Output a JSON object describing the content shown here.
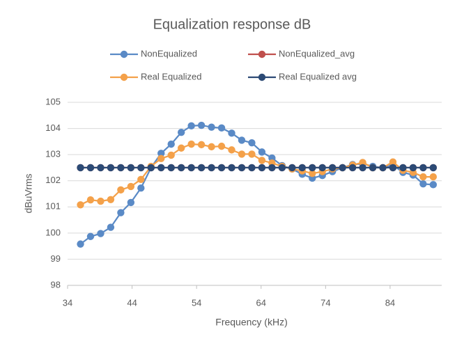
{
  "chart_data": {
    "type": "line",
    "title": "Equalization response  dB",
    "x_label": "Frequency (kHz)",
    "y_label": "dBuVrms",
    "x": [
      36,
      37.5625,
      39.125,
      40.6875,
      42.25,
      43.8125,
      45.375,
      46.9375,
      48.5,
      50.0625,
      51.625,
      53.1875,
      54.75,
      56.3125,
      57.875,
      59.4375,
      61,
      62.5625,
      64.125,
      65.6875,
      67.25,
      68.8125,
      70.375,
      71.9375,
      73.5,
      75.0625,
      76.625,
      78.1875,
      79.75,
      81.3125,
      82.875,
      84.4375,
      86,
      87.5625,
      89.125,
      90.6875
    ],
    "series": [
      {
        "name": "NonEqualized",
        "color": "#5a8ac6",
        "values": [
          99.58,
          99.87,
          99.98,
          100.22,
          100.78,
          101.17,
          101.72,
          102.5,
          103.05,
          103.4,
          103.85,
          104.1,
          104.12,
          104.05,
          104.02,
          103.82,
          103.55,
          103.45,
          103.1,
          102.87,
          102.58,
          102.45,
          102.25,
          102.1,
          102.2,
          102.35,
          102.5,
          102.62,
          102.65,
          102.55,
          102.5,
          102.6,
          102.32,
          102.22,
          101.88,
          101.85
        ]
      },
      {
        "name": "NonEqualized_avg",
        "color": "#c0504d",
        "values": [
          102.5,
          102.5,
          102.5,
          102.5,
          102.5,
          102.5,
          102.5,
          102.5,
          102.5,
          102.5,
          102.5,
          102.5,
          102.5,
          102.5,
          102.5,
          102.5,
          102.5,
          102.5,
          102.5,
          102.5,
          102.5,
          102.5,
          102.5,
          102.5,
          102.5,
          102.5,
          102.5,
          102.5,
          102.5,
          102.5,
          102.5,
          102.5,
          102.5,
          102.5,
          102.5,
          102.5
        ]
      },
      {
        "name": "Real Equalized",
        "color": "#f4a14a",
        "values": [
          101.08,
          101.27,
          101.22,
          101.28,
          101.65,
          101.78,
          102.05,
          102.55,
          102.85,
          102.98,
          103.25,
          103.4,
          103.38,
          103.3,
          103.32,
          103.18,
          103.02,
          103.02,
          102.78,
          102.68,
          102.55,
          102.45,
          102.38,
          102.28,
          102.35,
          102.45,
          102.5,
          102.6,
          102.7,
          102.5,
          102.5,
          102.72,
          102.4,
          102.32,
          102.15,
          102.15
        ]
      },
      {
        "name": "Real Equalized avg",
        "color": "#2c4a75",
        "values": [
          102.5,
          102.5,
          102.5,
          102.5,
          102.5,
          102.5,
          102.5,
          102.5,
          102.5,
          102.5,
          102.5,
          102.5,
          102.5,
          102.5,
          102.5,
          102.5,
          102.5,
          102.5,
          102.5,
          102.5,
          102.5,
          102.5,
          102.5,
          102.5,
          102.5,
          102.5,
          102.5,
          102.5,
          102.5,
          102.5,
          102.5,
          102.5,
          102.5,
          102.5,
          102.5,
          102.5
        ]
      }
    ],
    "xlim": [
      34,
      92
    ],
    "xticks": [
      34,
      44,
      54,
      64,
      74,
      84
    ],
    "ylim": [
      98,
      105
    ],
    "yticks": [
      98,
      99,
      100,
      101,
      102,
      103,
      104,
      105
    ],
    "grid": true,
    "legend": "top"
  }
}
